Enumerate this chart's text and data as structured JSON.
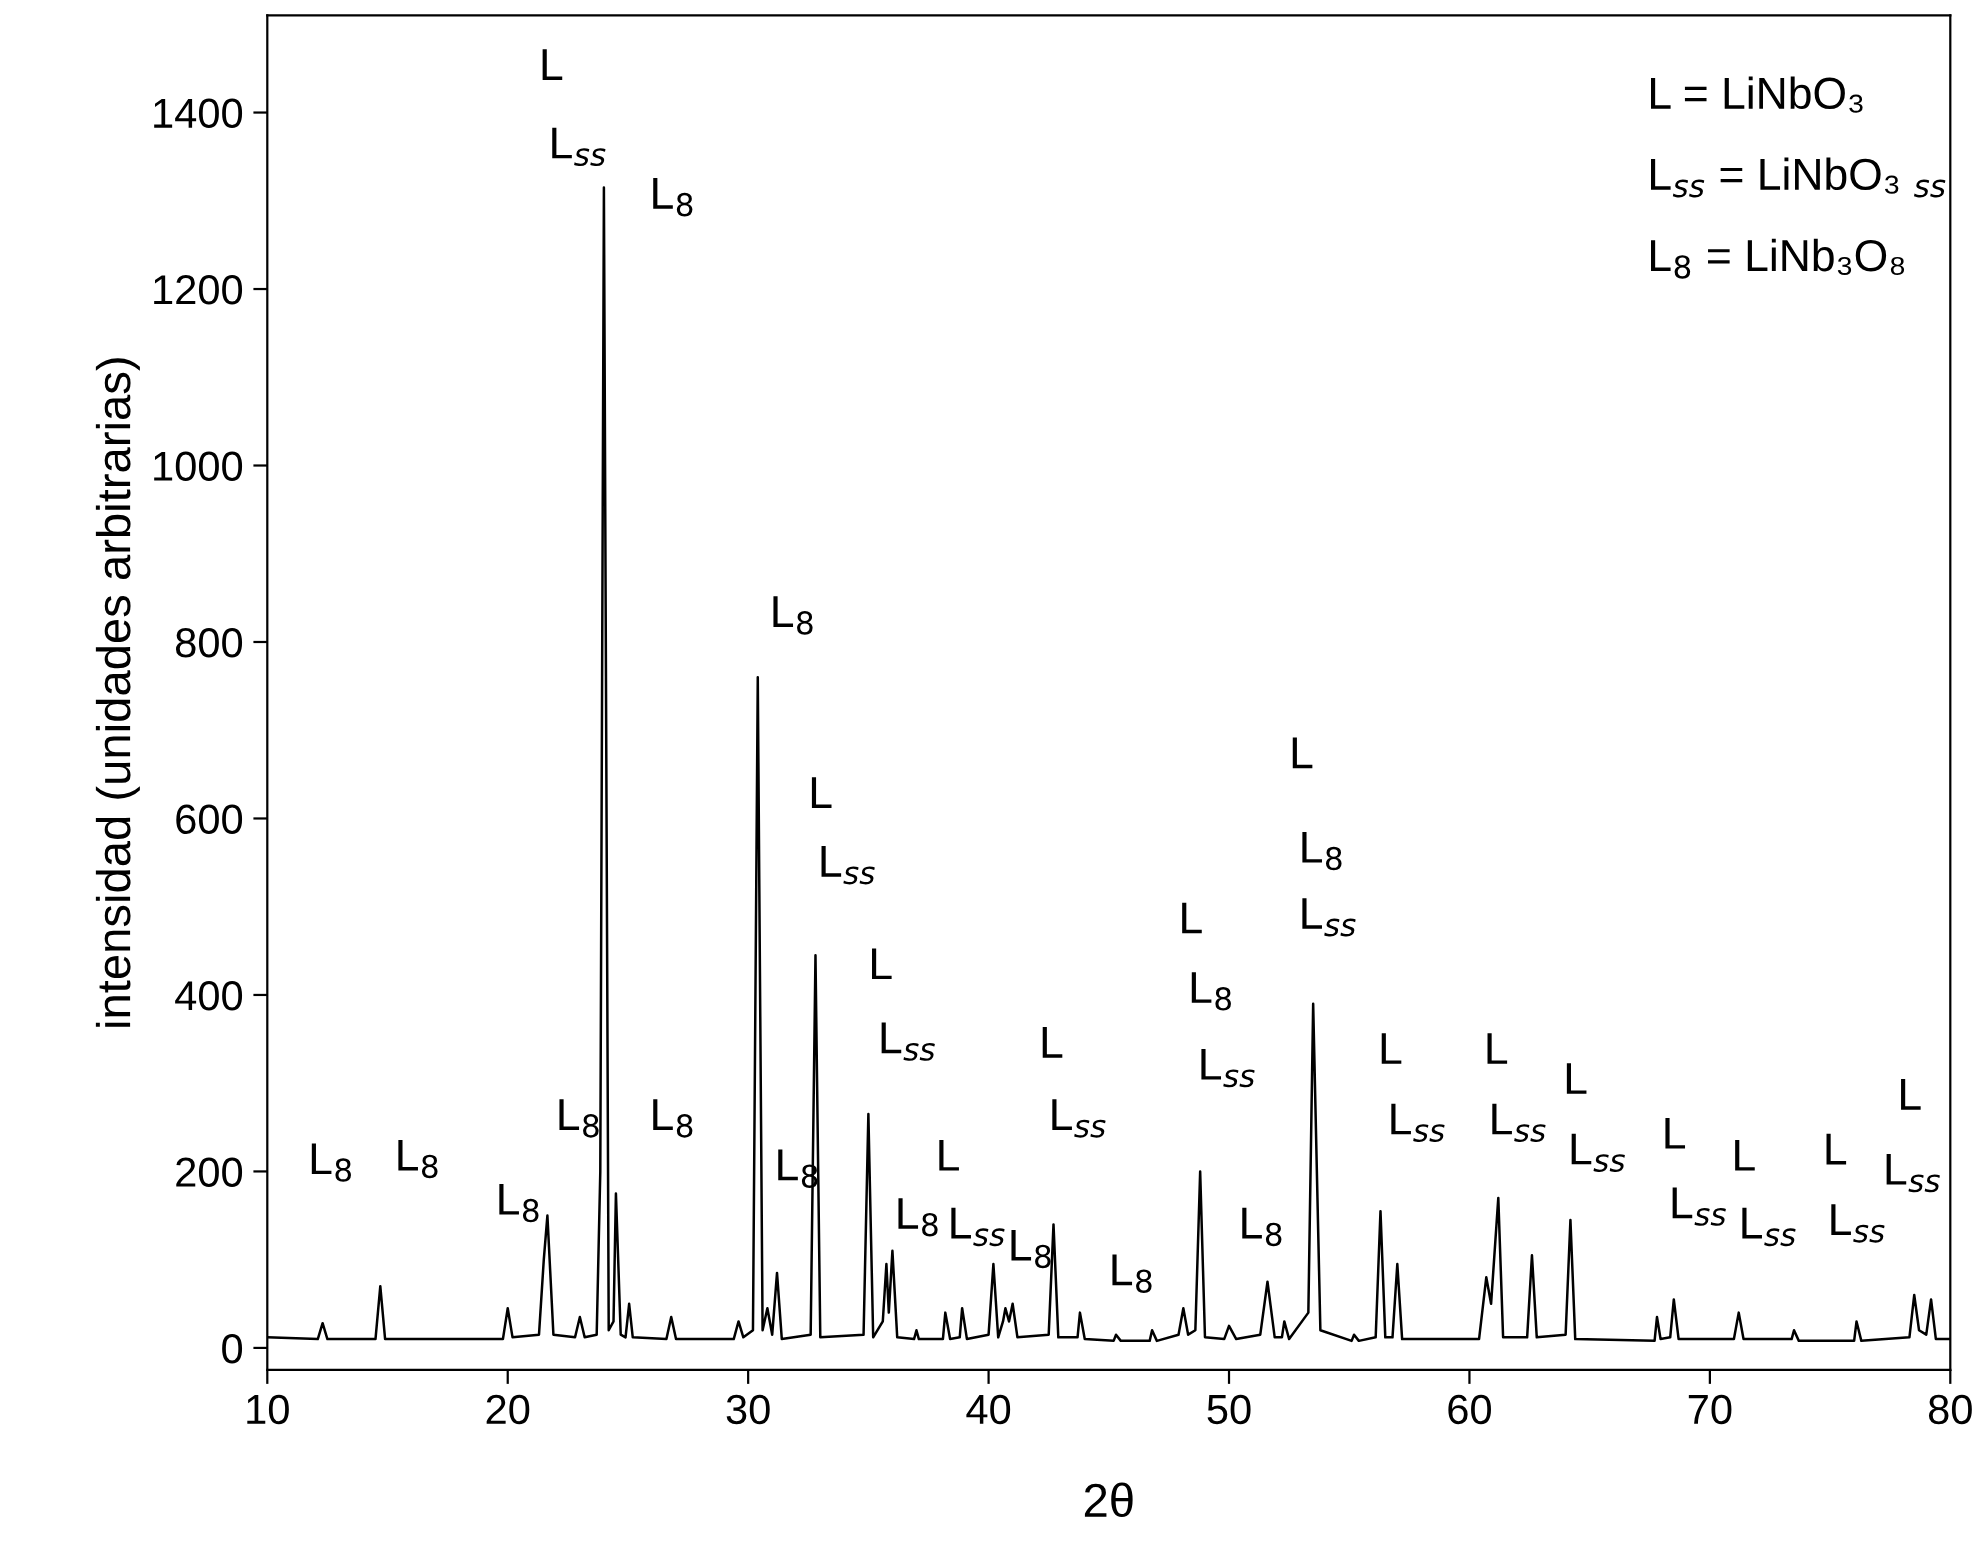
{
  "chart_data": {
    "type": "line",
    "xlabel": "2θ",
    "ylabel": "intensidad (unidades arbitrarias)",
    "xlim": [
      10,
      80
    ],
    "ylim": [
      -25,
      1510
    ],
    "xticks": [
      10,
      20,
      30,
      40,
      50,
      60,
      70,
      80
    ],
    "yticks": [
      0,
      200,
      400,
      600,
      800,
      1000,
      1200,
      1400
    ],
    "grid": false,
    "marker": "none",
    "line_style": "solid",
    "series": [
      {
        "color": "#000000",
        "x": [
          10.0,
          12.1,
          12.3,
          12.5,
          14.5,
          14.7,
          14.9,
          19.8,
          20.0,
          20.2,
          21.3,
          21.5,
          21.65,
          21.9,
          22.8,
          23.0,
          23.2,
          23.7,
          23.85,
          24.0,
          24.2,
          24.4,
          24.5,
          24.7,
          24.9,
          25.05,
          25.2,
          26.6,
          26.8,
          27.0,
          29.4,
          29.6,
          29.8,
          30.2,
          30.4,
          30.6,
          30.8,
          31.0,
          31.2,
          31.4,
          32.6,
          32.8,
          33.0,
          34.8,
          35.0,
          35.2,
          35.6,
          35.75,
          35.85,
          36.0,
          36.2,
          36.9,
          37.0,
          37.1,
          38.1,
          38.2,
          38.4,
          38.8,
          38.9,
          39.1,
          40.0,
          40.2,
          40.4,
          40.6,
          40.7,
          40.85,
          41.0,
          41.2,
          42.5,
          42.7,
          42.9,
          43.7,
          43.8,
          44.0,
          45.2,
          45.3,
          45.5,
          46.7,
          46.8,
          47.0,
          47.9,
          48.1,
          48.3,
          48.6,
          48.8,
          49.0,
          49.8,
          50.0,
          50.3,
          51.3,
          51.6,
          51.9,
          52.2,
          52.3,
          52.5,
          53.3,
          53.5,
          53.8,
          55.1,
          55.2,
          55.4,
          56.1,
          56.3,
          56.5,
          56.8,
          57.0,
          57.2,
          60.4,
          60.7,
          60.9,
          61.2,
          61.4,
          62.4,
          62.6,
          62.8,
          64.0,
          64.2,
          64.4,
          67.7,
          67.8,
          67.95,
          68.35,
          68.5,
          68.7,
          71.0,
          71.2,
          71.4,
          73.4,
          73.5,
          73.7,
          76.0,
          76.1,
          76.3,
          78.3,
          78.5,
          78.7,
          79.0,
          79.2,
          79.4,
          80.0
        ],
        "values": [
          12,
          10,
          28,
          10,
          10,
          70,
          10,
          10,
          45,
          12,
          15,
          100,
          150,
          15,
          12,
          35,
          12,
          15,
          200,
          1315,
          20,
          30,
          175,
          15,
          12,
          50,
          12,
          10,
          35,
          10,
          10,
          30,
          12,
          20,
          760,
          20,
          45,
          15,
          85,
          10,
          15,
          445,
          12,
          15,
          265,
          12,
          30,
          95,
          40,
          110,
          12,
          10,
          20,
          10,
          10,
          40,
          10,
          12,
          45,
          10,
          15,
          95,
          12,
          30,
          45,
          30,
          50,
          12,
          15,
          140,
          12,
          12,
          40,
          10,
          8,
          15,
          8,
          8,
          20,
          8,
          15,
          45,
          15,
          20,
          200,
          12,
          10,
          25,
          10,
          15,
          75,
          12,
          12,
          30,
          10,
          40,
          390,
          20,
          8,
          15,
          8,
          12,
          155,
          12,
          12,
          95,
          10,
          10,
          80,
          50,
          170,
          12,
          12,
          105,
          12,
          15,
          145,
          10,
          8,
          35,
          10,
          12,
          55,
          10,
          10,
          40,
          10,
          10,
          20,
          8,
          8,
          30,
          8,
          12,
          60,
          20,
          15,
          55,
          10,
          10
        ]
      }
    ],
    "annotations": [
      "L = LiNbO₃",
      "L$_{ss}$ = LiNbO₃ $_{ss}$",
      "L$_{8}$ = LiNb₃O₈",
      "L",
      "L$_{ss}$",
      "L$_{8}$",
      "L$_{8}$",
      "L$_{8}$",
      "L$_{8}$",
      "L$_{8}$",
      "L$_{8}$",
      "L$_{8}$",
      "L",
      "L$_{ss}$",
      "L$_{8}$",
      "L",
      "L$_{ss}$",
      "L$_{8}$",
      "L",
      "L$_{ss}$",
      "L",
      "L$_{ss}$",
      "L$_{8}$",
      "L$_{8}$",
      "L",
      "L$_{8}$",
      "L$_{ss}$",
      "L$_{8}$",
      "L",
      "L$_{8}$",
      "L$_{ss}$",
      "L",
      "L$_{ss}$",
      "L",
      "L$_{ss}$",
      "L",
      "L$_{ss}$",
      "L",
      "L$_{ss}$",
      "L",
      "L$_{ss}$",
      "L",
      "L$_{ss}$",
      "L",
      "L$_{ss}$"
    ]
  }
}
